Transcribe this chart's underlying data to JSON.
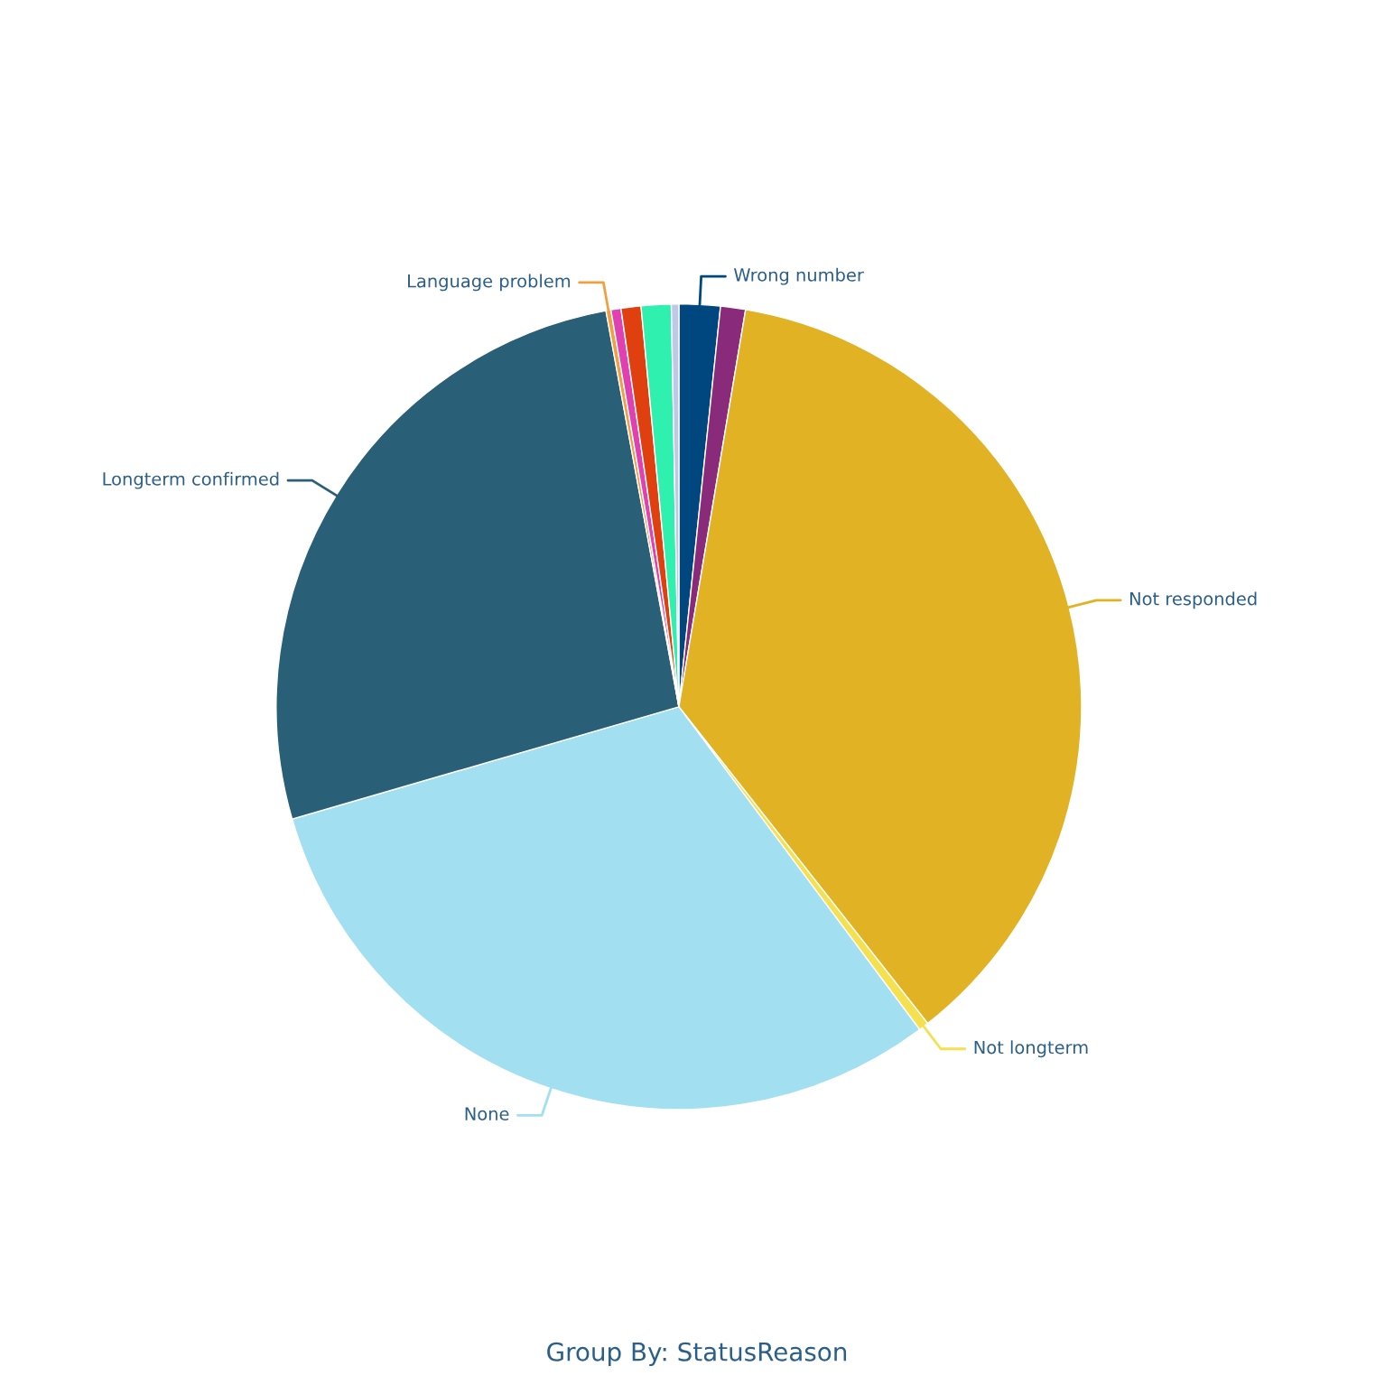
{
  "chart_data": {
    "type": "pie",
    "categories": [
      "Wrong number",
      null,
      "Not responded",
      "Not longterm",
      "None",
      "Longterm confirmed",
      "Language problem",
      null,
      null,
      null,
      null
    ],
    "values": [
      1.65,
      1.0,
      36.75,
      0.4,
      30.7,
      26.6,
      0.2,
      0.4,
      0.8,
      1.2,
      0.3
    ],
    "colors": [
      "#00467f",
      "#8a2a7a",
      "#e0b224",
      "#f5e050",
      "#a2dff0",
      "#2a5f78",
      "#f0a040",
      "#e040b0",
      "#e04010",
      "#30f0b0",
      "#c0c8e8"
    ],
    "annotations": [
      "Group By: StatusReason"
    ],
    "legend": false
  }
}
